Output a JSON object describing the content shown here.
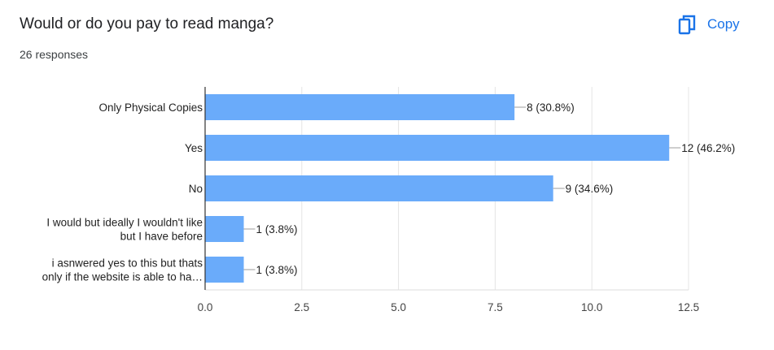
{
  "question": {
    "title": "Would or do you pay to read manga?"
  },
  "responses": {
    "text": "26 responses"
  },
  "copy_button": {
    "label": "Copy",
    "icon": "copy-icon"
  },
  "colors": {
    "bar": "#6aabfa",
    "accent": "#1a73e8"
  },
  "chart_data": {
    "type": "bar",
    "orientation": "horizontal",
    "categories": [
      [
        "Only Physical Copies"
      ],
      [
        "Yes"
      ],
      [
        "No"
      ],
      [
        "I would but ideally I wouldn't like",
        "but I have before"
      ],
      [
        "i asnwered yes to this but thats",
        "only if the website is able to ha…"
      ]
    ],
    "values": [
      8,
      12,
      9,
      1,
      1
    ],
    "data_labels": [
      "8 (30.8%)",
      "12 (46.2%)",
      "9 (34.6%)",
      "1 (3.8%)",
      "1 (3.8%)"
    ],
    "xlim": [
      0,
      12.5
    ],
    "xticks": [
      0,
      2.5,
      5,
      7.5,
      10,
      12.5
    ],
    "xtick_labels": [
      "0.0",
      "2.5",
      "5.0",
      "7.5",
      "10.0",
      "12.5"
    ],
    "grid": true
  }
}
